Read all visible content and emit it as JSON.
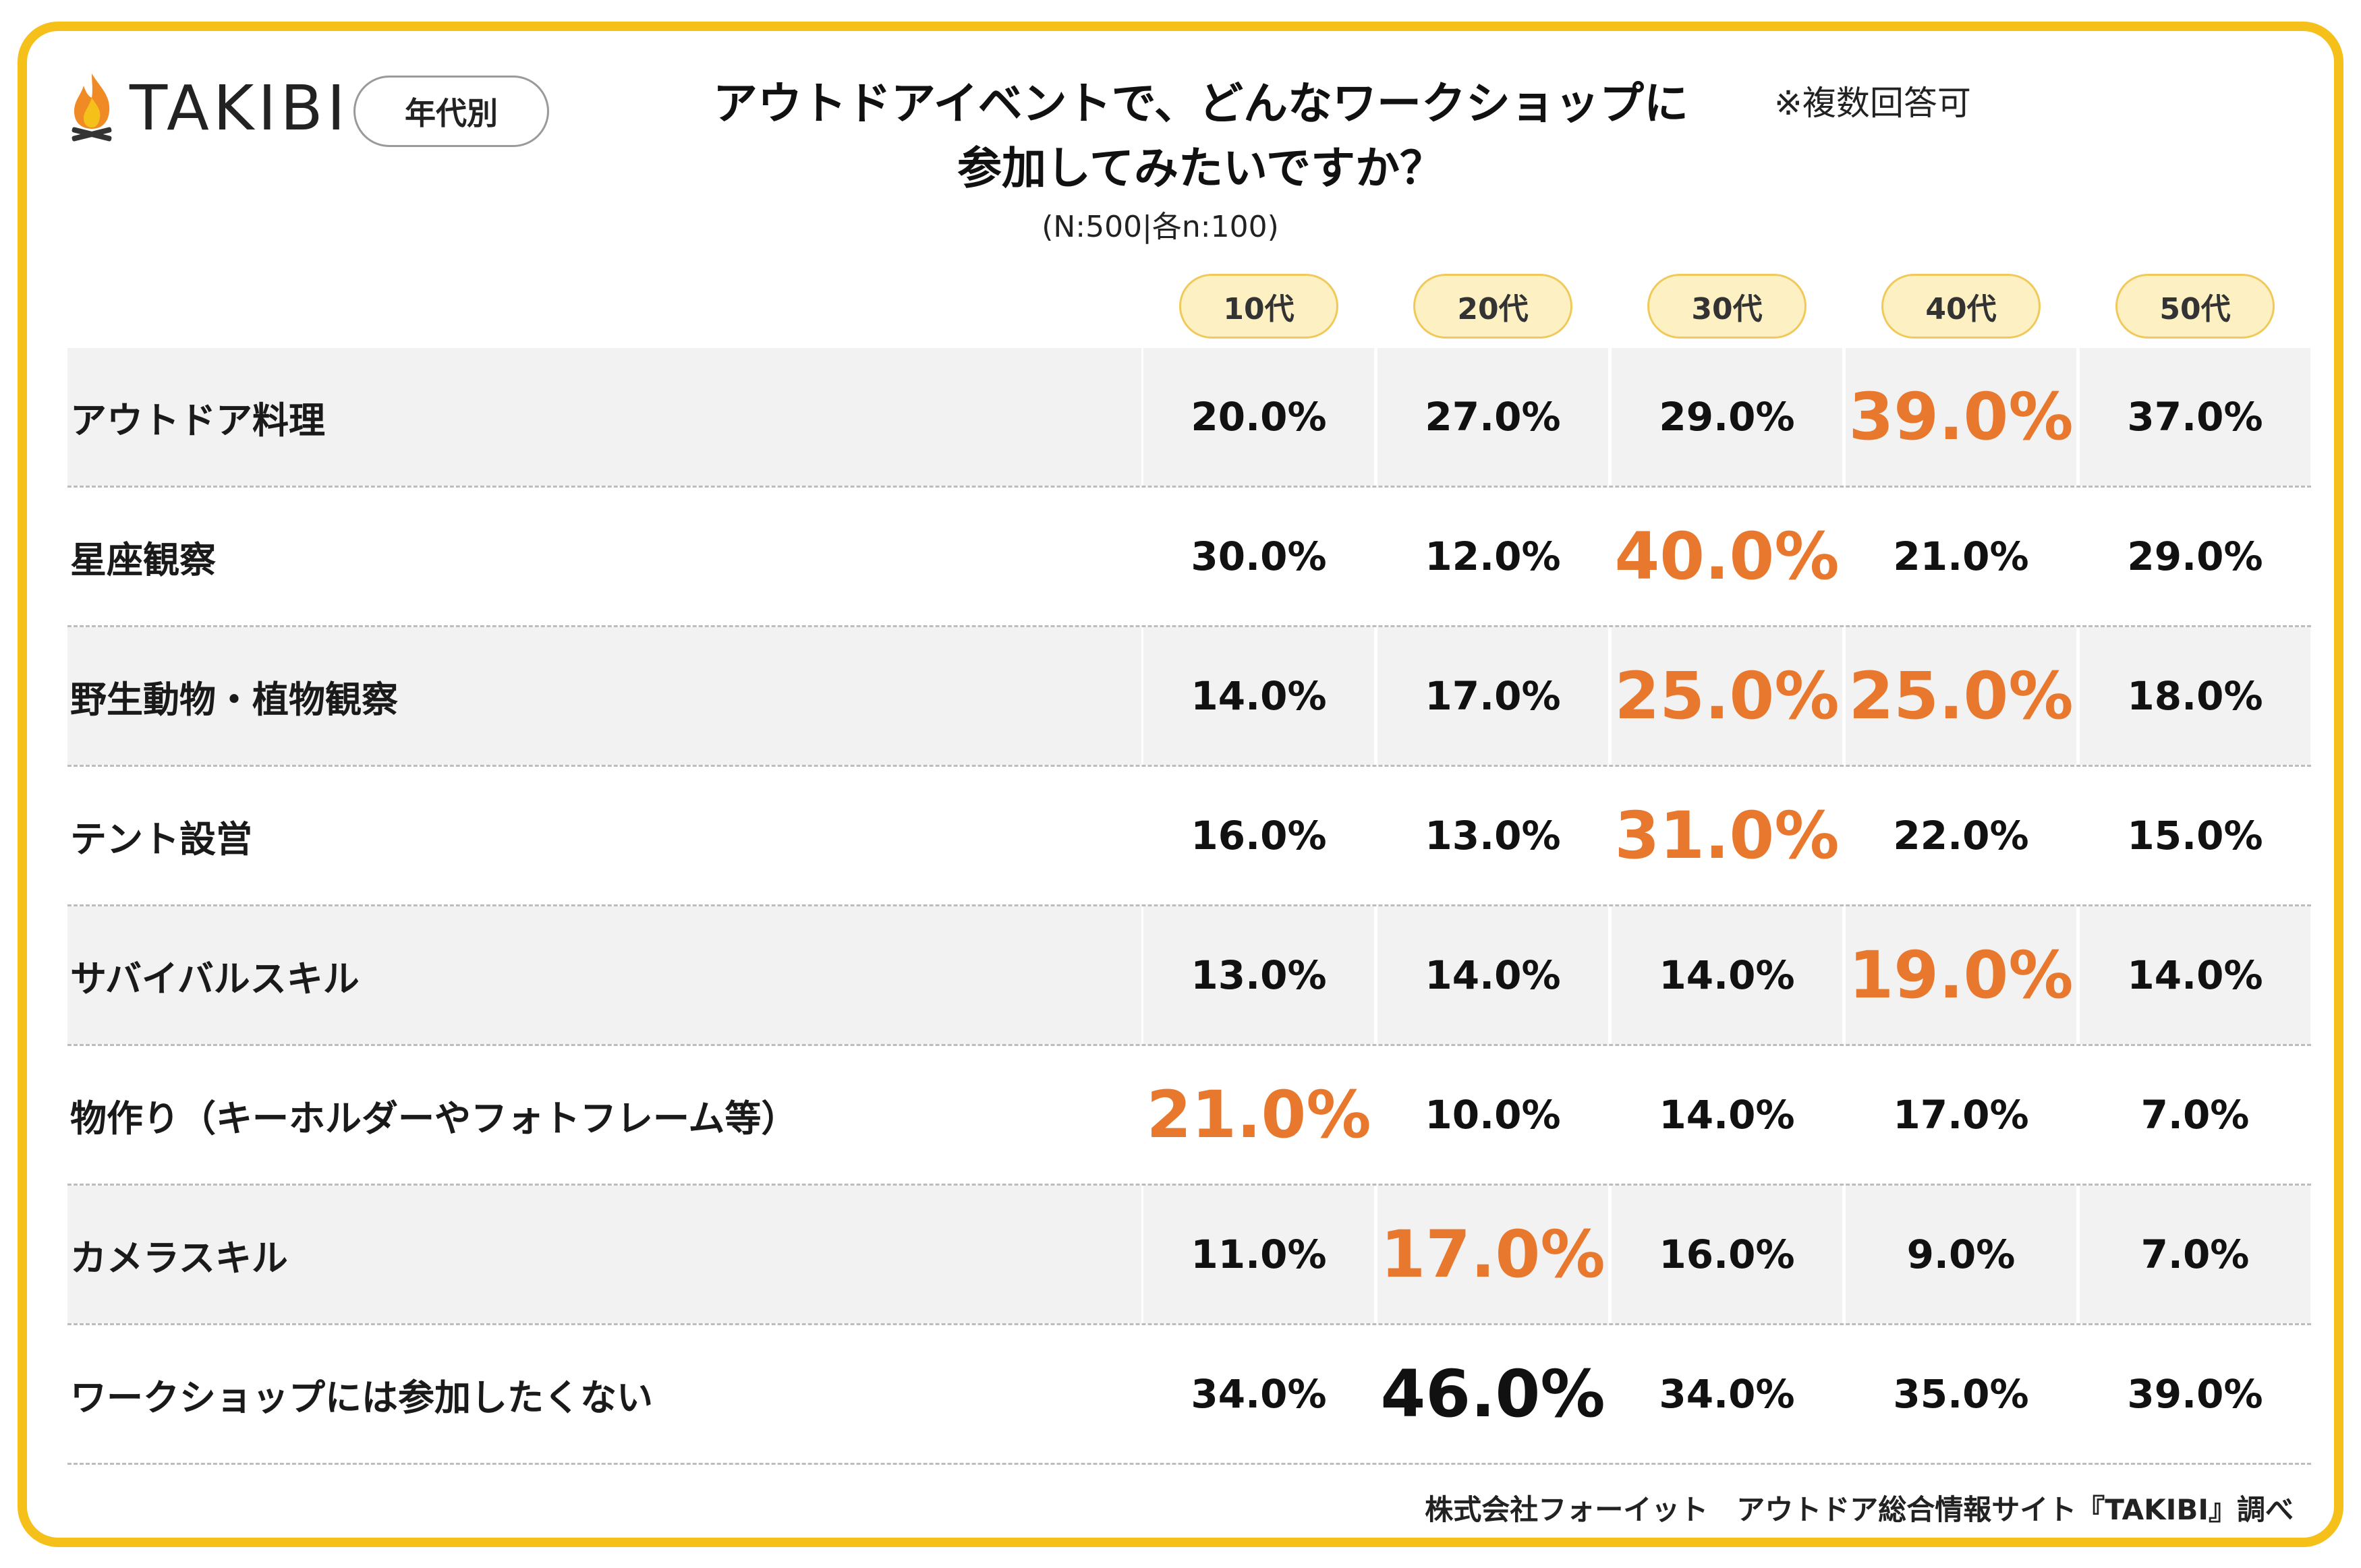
{
  "brand": {
    "name": "TAKIBI",
    "logo_icon": "campfire-icon"
  },
  "segment_badge": "年代別",
  "title_lines": [
    "アウトドアイベントで、どんなワークショップに",
    "参加してみたいですか？"
  ],
  "multi_answer_note": "※複数回答可",
  "sample_note": "(N:500|各n:100)",
  "source": "株式会社フォーイット　アウトドア総合情報サイト『TAKIBI』調べ",
  "colors": {
    "frame": "#f6c01b",
    "highlight": "#e8782d",
    "pill_bg": "#fdf1c4",
    "row_shade": "#f2f2f2"
  },
  "chart_data": {
    "type": "table",
    "columns": [
      "10代",
      "20代",
      "30代",
      "40代",
      "50代"
    ],
    "rows": [
      {
        "label": "アウトドア料理",
        "values": [
          "20.0%",
          "27.0%",
          "29.0%",
          "39.0%",
          "37.0%"
        ],
        "highlight": [
          3
        ]
      },
      {
        "label": "星座観察",
        "values": [
          "30.0%",
          "12.0%",
          "40.0%",
          "21.0%",
          "29.0%"
        ],
        "highlight": [
          2
        ]
      },
      {
        "label": "野生動物・植物観察",
        "values": [
          "14.0%",
          "17.0%",
          "25.0%",
          "25.0%",
          "18.0%"
        ],
        "highlight": [
          2,
          3
        ]
      },
      {
        "label": "テント設営",
        "values": [
          "16.0%",
          "13.0%",
          "31.0%",
          "22.0%",
          "15.0%"
        ],
        "highlight": [
          2
        ]
      },
      {
        "label": "サバイバルスキル",
        "values": [
          "13.0%",
          "14.0%",
          "14.0%",
          "19.0%",
          "14.0%"
        ],
        "highlight": [
          3
        ]
      },
      {
        "label": "物作り（キーホルダーやフォトフレーム等）",
        "values": [
          "21.0%",
          "10.0%",
          "14.0%",
          "17.0%",
          "7.0%"
        ],
        "highlight": [
          0
        ]
      },
      {
        "label": "カメラスキル",
        "values": [
          "11.0%",
          "17.0%",
          "16.0%",
          "9.0%",
          "7.0%"
        ],
        "highlight": [
          1
        ]
      },
      {
        "label": "ワークショップには参加したくない",
        "values": [
          "34.0%",
          "46.0%",
          "34.0%",
          "35.0%",
          "39.0%"
        ],
        "highlight": [
          1
        ],
        "highlight_style": "black"
      }
    ]
  }
}
